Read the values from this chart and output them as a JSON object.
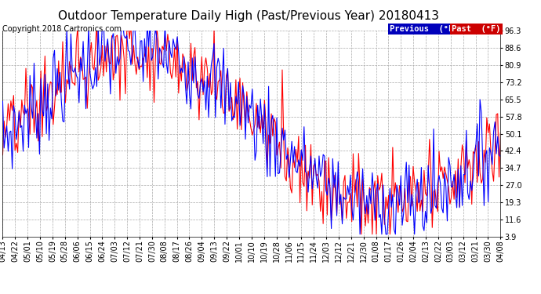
{
  "title": "Outdoor Temperature Daily High (Past/Previous Year) 20180413",
  "copyright": "Copyright 2018 Cartronics.com",
  "legend_previous_label": "Previous  (°F)",
  "legend_past_label": "Past  (°F)",
  "previous_color": "#0000ff",
  "past_color": "#ff0000",
  "legend_previous_bg": "#0000bb",
  "legend_past_bg": "#cc0000",
  "bg_color": "#ffffff",
  "plot_bg_color": "#ffffff",
  "grid_color": "#aaaaaa",
  "yticks": [
    3.9,
    11.6,
    19.3,
    27.0,
    34.7,
    42.4,
    50.1,
    57.8,
    65.5,
    73.2,
    80.9,
    88.6,
    96.3
  ],
  "ylim": [
    3.9,
    96.3
  ],
  "xtick_labels": [
    "04/13",
    "04/22",
    "05/01",
    "05/10",
    "05/19",
    "05/28",
    "06/06",
    "06/15",
    "06/24",
    "07/03",
    "07/12",
    "07/21",
    "07/30",
    "08/08",
    "08/17",
    "08/26",
    "09/04",
    "09/13",
    "09/22",
    "10/01",
    "10/10",
    "10/19",
    "10/28",
    "11/06",
    "11/15",
    "11/24",
    "12/03",
    "12/12",
    "12/21",
    "12/30",
    "01/08",
    "01/17",
    "01/26",
    "02/04",
    "02/13",
    "02/22",
    "03/03",
    "03/12",
    "03/21",
    "03/30",
    "04/08"
  ],
  "line_width": 0.8,
  "title_fontsize": 11,
  "tick_fontsize": 7,
  "copyright_fontsize": 7
}
